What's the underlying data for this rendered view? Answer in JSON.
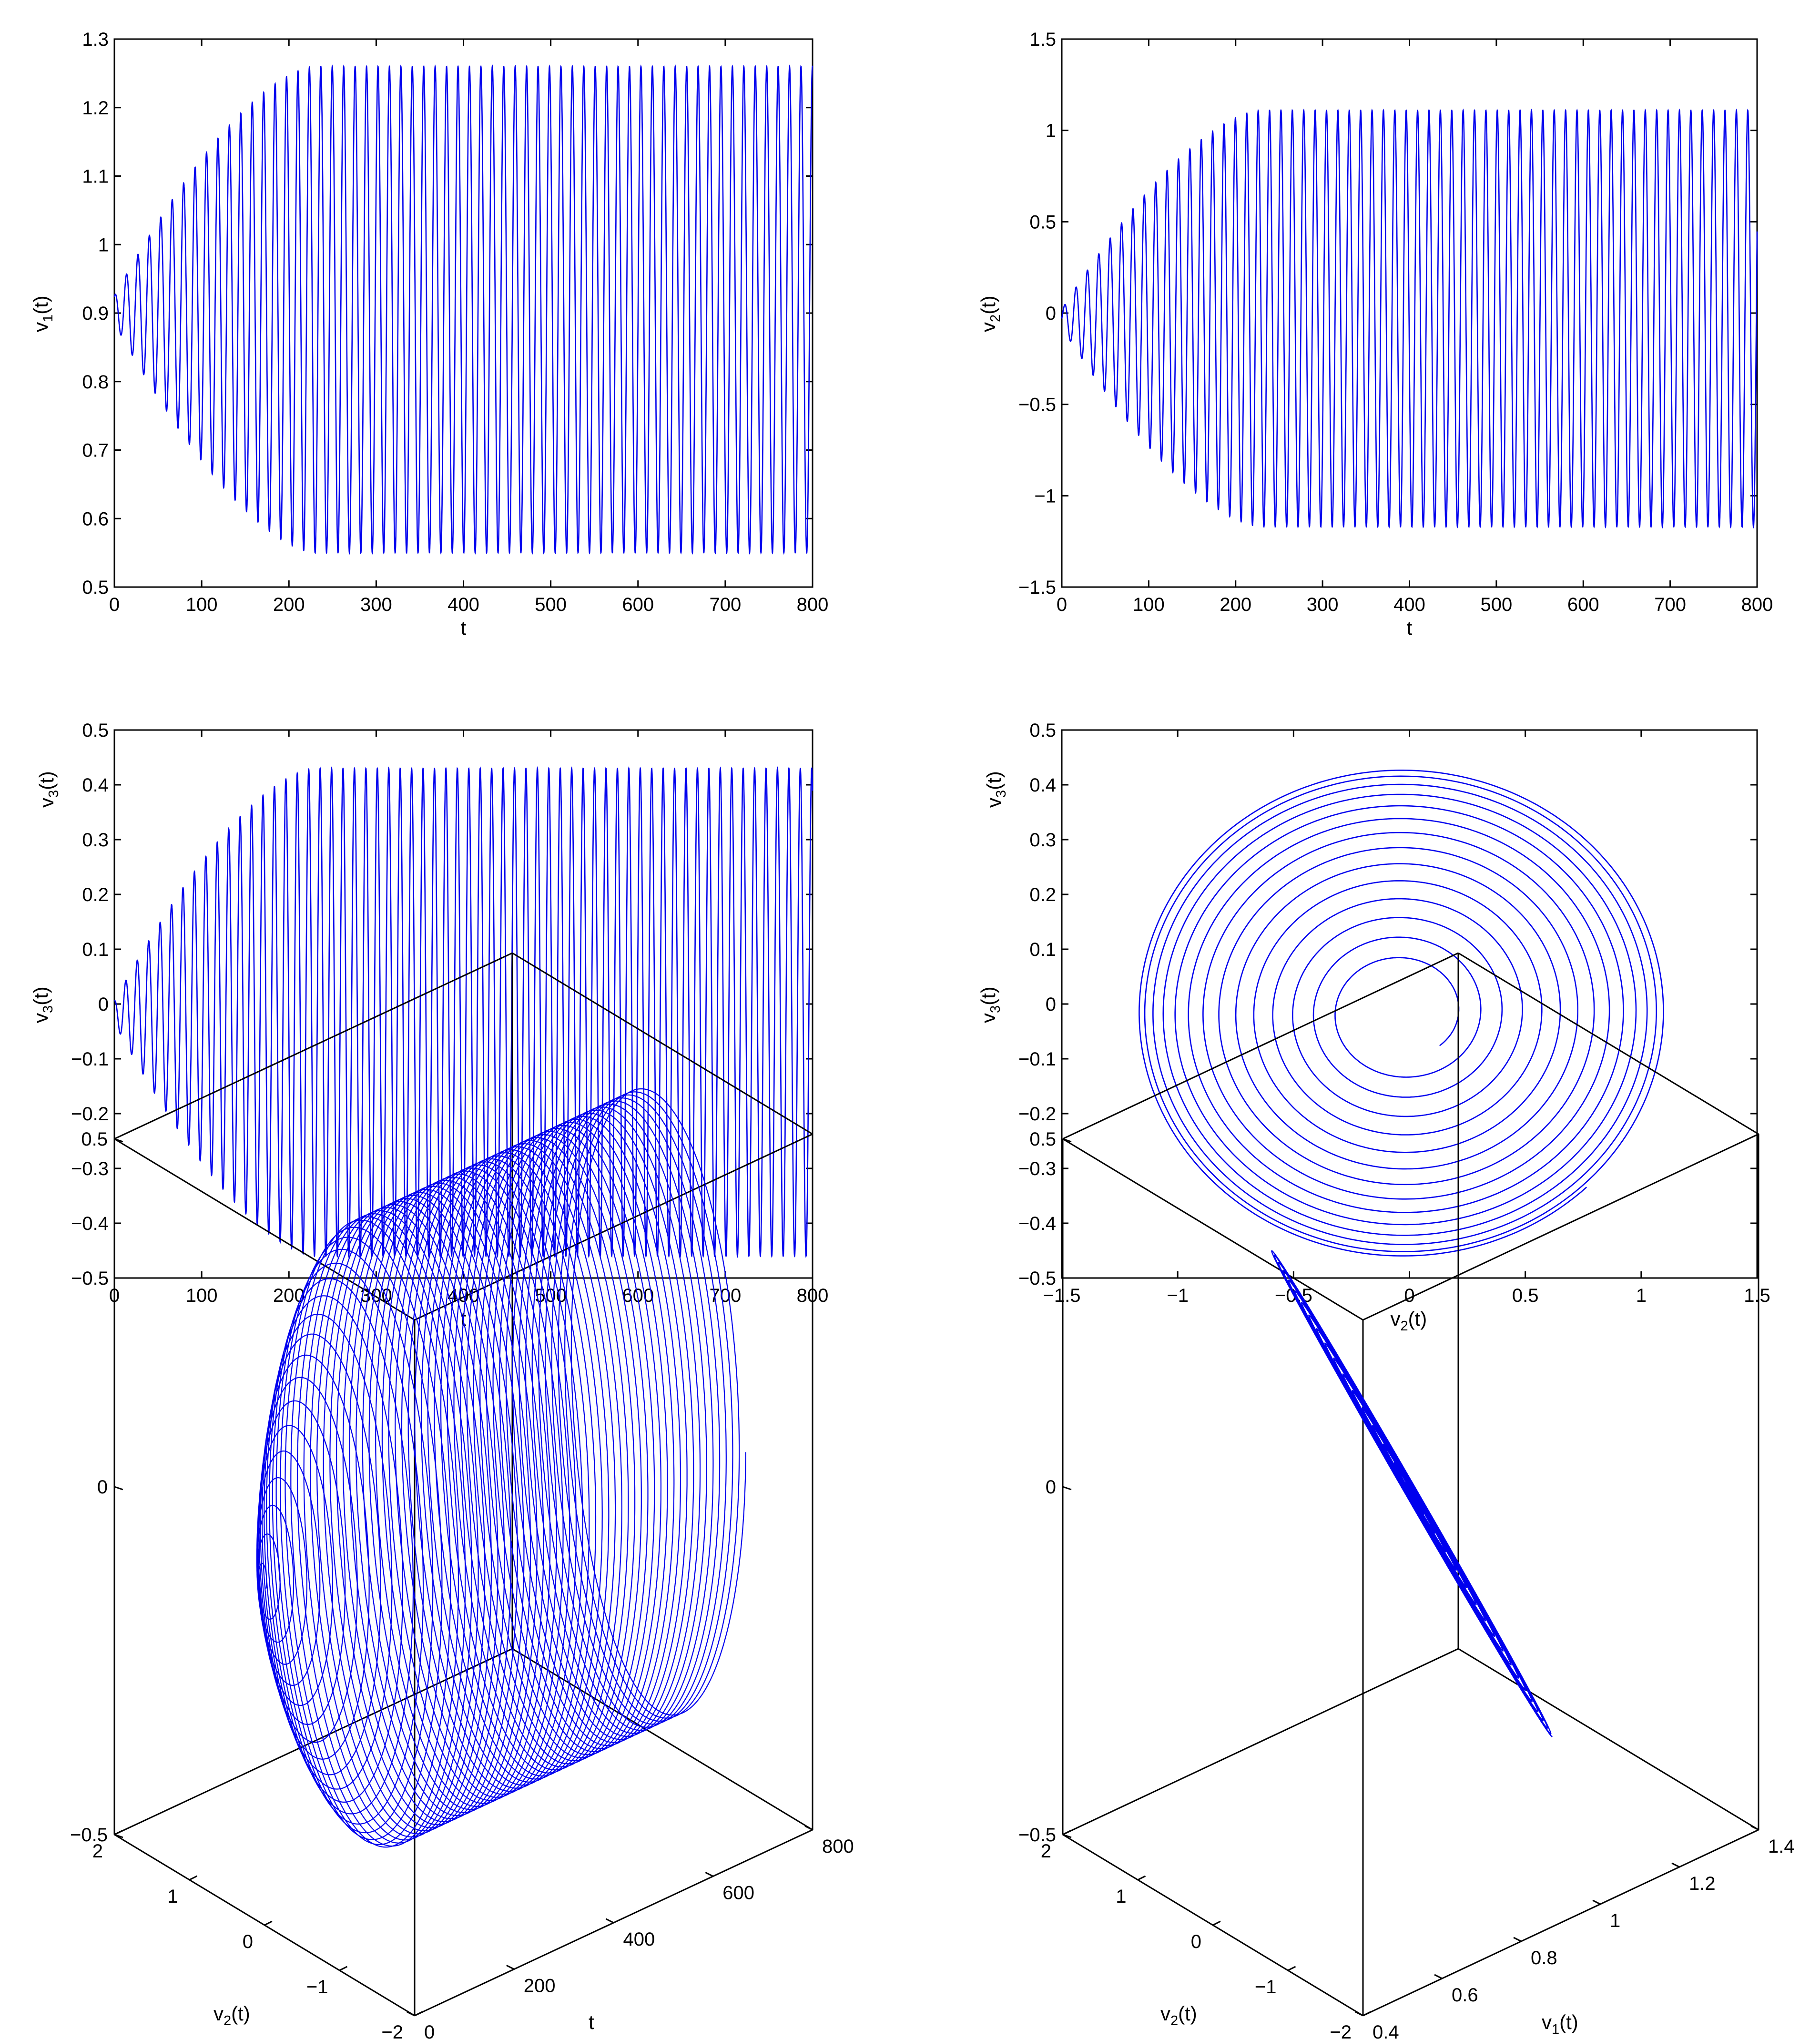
{
  "chart_data": [
    {
      "type": "line",
      "xlabel": "t",
      "ylabel_base": "v",
      "ylabel_sub": "1",
      "ylabel_tail": "(t)",
      "xlim": [
        0,
        800
      ],
      "ylim": [
        0.5,
        1.3
      ],
      "xticks": [
        0,
        100,
        200,
        300,
        400,
        500,
        600,
        700,
        800
      ],
      "yticks": [
        0.5,
        0.6,
        0.7,
        0.8,
        0.9,
        1,
        1.1,
        1.2,
        1.3
      ],
      "series": [
        {
          "center": 0.905,
          "amp_start": 0.02,
          "amp_end": 0.355,
          "growth_end_t": 230,
          "period": 13.1,
          "phase": 1.2,
          "t_start": 0,
          "t_end": 800,
          "color": "#0000ee"
        }
      ]
    },
    {
      "type": "line",
      "xlabel": "t",
      "ylabel_base": "v",
      "ylabel_sub": "2",
      "ylabel_tail": "(t)",
      "xlim": [
        0,
        800
      ],
      "ylim": [
        -1.5,
        1.5
      ],
      "xticks": [
        0,
        100,
        200,
        300,
        400,
        500,
        600,
        700,
        800
      ],
      "yticks": [
        -1.5,
        -1,
        -0.5,
        0,
        0.5,
        1,
        1.5
      ],
      "series": [
        {
          "center": -0.03,
          "amp_start": 0.05,
          "amp_end": 1.14,
          "growth_end_t": 230,
          "period": 13.1,
          "phase": 0,
          "t_start": 0,
          "t_end": 800,
          "color": "#0000ee"
        }
      ]
    },
    {
      "type": "line",
      "xlabel": "t",
      "ylabel_base": "v",
      "ylabel_sub": "3",
      "ylabel_tail": "(t)",
      "xlim": [
        0,
        800
      ],
      "ylim": [
        -0.5,
        0.5
      ],
      "xticks": [
        0,
        100,
        200,
        300,
        400,
        500,
        600,
        700,
        800
      ],
      "yticks": [
        -0.5,
        -0.4,
        -0.3,
        -0.2,
        -0.1,
        0,
        0.1,
        0.2,
        0.3,
        0.4,
        0.5
      ],
      "series": [
        {
          "center": -0.015,
          "amp_start": 0.02,
          "amp_end": 0.445,
          "growth_end_t": 230,
          "period": 13.1,
          "phase": 1.57,
          "t_start": 0,
          "t_end": 800,
          "color": "#0000ee"
        }
      ]
    },
    {
      "type": "line",
      "xlabel_base": "v",
      "xlabel_sub": "2",
      "xlabel_tail": "(t)",
      "ylabel_base": "v",
      "ylabel_sub": "3",
      "ylabel_tail": "(t)",
      "xlim": [
        -1.5,
        1.5
      ],
      "ylim": [
        -0.5,
        0.5
      ],
      "xticks": [
        -1.5,
        -1,
        -0.5,
        0,
        0.5,
        1,
        1.5
      ],
      "yticks": [
        -0.5,
        -0.4,
        -0.3,
        -0.2,
        -0.1,
        0,
        0.1,
        0.2,
        0.3,
        0.4,
        0.5
      ],
      "series": [
        {
          "x_center": -0.03,
          "y_center": -0.015,
          "x_amp_start": 0.23,
          "x_amp_end": 1.14,
          "y_amp_start": 0.085,
          "y_amp_end": 0.445,
          "turns": 14,
          "color": "#0000ee"
        }
      ]
    },
    {
      "type": "line3d",
      "zlabel_base": "v",
      "zlabel_sub": "3",
      "zlabel_tail": "(t)",
      "ylabel_base": "v",
      "ylabel_sub": "2",
      "ylabel_tail": "(t)",
      "xlabel": "t",
      "zlim": [
        -0.5,
        0.5
      ],
      "zticks": [
        -0.5,
        0,
        0.5
      ],
      "ylim": [
        -2,
        2
      ],
      "yticks": [
        2,
        1,
        0,
        -1,
        -2
      ],
      "xlim": [
        0,
        800
      ],
      "xticks": [
        0,
        200,
        400,
        600,
        800
      ],
      "series": [
        {
          "x_center": -0.03,
          "x_amp_end": 1.14,
          "z_amp_end": 0.445,
          "t_end": 800,
          "turns": 61,
          "color": "#0000ee"
        }
      ]
    },
    {
      "type": "line3d",
      "zlabel_base": "v",
      "zlabel_sub": "3",
      "zlabel_tail": "(t)",
      "ylabel_base": "v",
      "ylabel_sub": "2",
      "ylabel_tail": "(t)",
      "xlabel_base": "v",
      "xlabel_sub": "1",
      "xlabel_tail": "(t)",
      "zlim": [
        -0.5,
        0.5
      ],
      "zticks": [
        -0.5,
        0,
        0.5
      ],
      "ylim": [
        -2,
        2
      ],
      "yticks": [
        2,
        1,
        0,
        -1,
        -2
      ],
      "xlim": [
        0.4,
        1.4
      ],
      "xticks": [
        0.4,
        0.6,
        0.8,
        1,
        1.2,
        1.4
      ],
      "series": [
        {
          "color": "#0000ee"
        }
      ]
    }
  ]
}
